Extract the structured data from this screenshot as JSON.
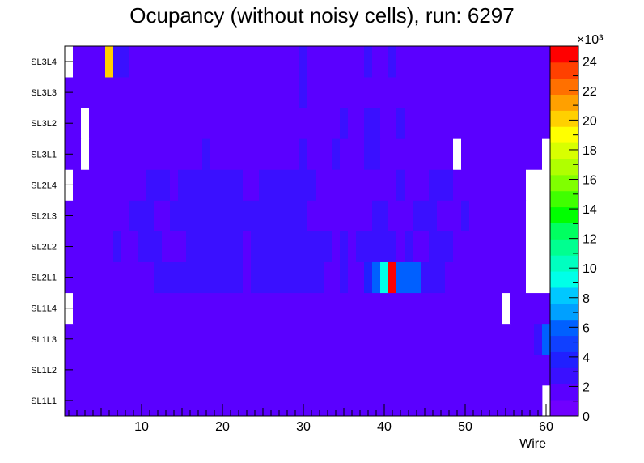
{
  "chart_data": {
    "type": "heatmap",
    "title": "Ocupancy (without noisy cells), run: 6297",
    "xlabel": "Wire",
    "ylabel": "",
    "x_ticks": [
      "10",
      "20",
      "30",
      "40",
      "50",
      "60"
    ],
    "x_range": [
      0.5,
      60.5
    ],
    "layers": [
      "SL1L1",
      "SL1L2",
      "SL1L3",
      "SL1L4",
      "SL2L1",
      "SL2L2",
      "SL2L3",
      "SL2L4",
      "SL3L1",
      "SL3L2",
      "SL3L3",
      "SL3L4"
    ],
    "z_range": [
      0,
      25000
    ],
    "z_multiplier": "×10³",
    "z_ticks": [
      "0",
      "2",
      "4",
      "6",
      "8",
      "10",
      "12",
      "14",
      "16",
      "18",
      "20",
      "22",
      "24"
    ],
    "palette": [
      "#7000ff",
      "#5a00ff",
      "#3a10ff",
      "#2020ff",
      "#1040ff",
      "#0060ff",
      "#00a0ff",
      "#00c8ff",
      "#00ffe8",
      "#00ffc0",
      "#00ff90",
      "#00ff60",
      "#00ff00",
      "#40ff00",
      "#80ff00",
      "#b0ff00",
      "#d8ff00",
      "#ffff00",
      "#ffd000",
      "#ffa000",
      "#ff7000",
      "#ff4000",
      "#ff0000"
    ],
    "white_color": "#ffffff",
    "row_segments": [
      [
        [
          1,
          60,
          1200
        ]
      ],
      [
        [
          1,
          3,
          1200
        ],
        [
          3,
          56,
          2000
        ],
        [
          56,
          61,
          1200
        ]
      ],
      [
        [
          1,
          2,
          1200
        ],
        [
          2,
          56,
          2000
        ],
        [
          56,
          59,
          1200
        ],
        [
          59,
          60,
          2200
        ],
        [
          60,
          61,
          6500
        ]
      ],
      [
        [
          1,
          2,
          0
        ],
        [
          2,
          3,
          1200
        ],
        [
          3,
          55,
          2000
        ],
        [
          55,
          56,
          0
        ],
        [
          56,
          57,
          1200
        ],
        [
          57,
          58,
          2000
        ],
        [
          58,
          61,
          1200
        ]
      ],
      [
        [
          1,
          2,
          1200
        ],
        [
          2,
          12,
          2000
        ],
        [
          12,
          23,
          2600
        ],
        [
          23,
          24,
          2000
        ],
        [
          24,
          33,
          2600
        ],
        [
          33,
          35,
          2000
        ],
        [
          35,
          36,
          2600
        ],
        [
          36,
          38,
          2000
        ],
        [
          38,
          39,
          4000
        ],
        [
          39,
          40,
          6500
        ],
        [
          40,
          41,
          9000
        ],
        [
          41,
          42,
          25000
        ],
        [
          42,
          45,
          6500
        ],
        [
          45,
          48,
          2600
        ],
        [
          48,
          56,
          2000
        ],
        [
          56,
          57,
          1200
        ],
        [
          57,
          58,
          2000
        ],
        [
          58,
          61,
          0
        ]
      ],
      [
        [
          1,
          2,
          1200
        ],
        [
          2,
          7,
          2000
        ],
        [
          7,
          8,
          2600
        ],
        [
          8,
          10,
          2000
        ],
        [
          10,
          13,
          2600
        ],
        [
          13,
          16,
          2000
        ],
        [
          16,
          23,
          2600
        ],
        [
          23,
          24,
          2000
        ],
        [
          24,
          34,
          2600
        ],
        [
          34,
          35,
          2000
        ],
        [
          35,
          36,
          2600
        ],
        [
          36,
          37,
          2000
        ],
        [
          37,
          38,
          2600
        ],
        [
          38,
          42,
          2600
        ],
        [
          42,
          43,
          2000
        ],
        [
          43,
          44,
          2600
        ],
        [
          44,
          46,
          2000
        ],
        [
          46,
          49,
          2600
        ],
        [
          49,
          56,
          2000
        ],
        [
          56,
          57,
          1200
        ],
        [
          57,
          58,
          2000
        ],
        [
          58,
          61,
          0
        ]
      ],
      [
        [
          1,
          2,
          1200
        ],
        [
          2,
          9,
          2000
        ],
        [
          9,
          12,
          2600
        ],
        [
          12,
          14,
          2000
        ],
        [
          14,
          17,
          2600
        ],
        [
          17,
          23,
          2600
        ],
        [
          23,
          31,
          2600
        ],
        [
          31,
          39,
          2000
        ],
        [
          39,
          41,
          2600
        ],
        [
          41,
          44,
          2000
        ],
        [
          44,
          47,
          2600
        ],
        [
          47,
          50,
          2000
        ],
        [
          50,
          51,
          2600
        ],
        [
          51,
          55,
          2000
        ],
        [
          55,
          57,
          1200
        ],
        [
          57,
          58,
          2000
        ],
        [
          58,
          61,
          0
        ]
      ],
      [
        [
          1,
          2,
          0
        ],
        [
          2,
          3,
          1200
        ],
        [
          3,
          11,
          2000
        ],
        [
          11,
          14,
          2600
        ],
        [
          14,
          15,
          2000
        ],
        [
          15,
          23,
          2600
        ],
        [
          23,
          25,
          2000
        ],
        [
          25,
          32,
          2600
        ],
        [
          32,
          42,
          2000
        ],
        [
          42,
          43,
          2600
        ],
        [
          43,
          46,
          2000
        ],
        [
          46,
          49,
          2600
        ],
        [
          49,
          56,
          2000
        ],
        [
          56,
          57,
          1200
        ],
        [
          57,
          58,
          2000
        ],
        [
          58,
          61,
          0
        ]
      ],
      [
        [
          1,
          3,
          2000
        ],
        [
          3,
          4,
          0
        ],
        [
          4,
          18,
          2000
        ],
        [
          18,
          19,
          2600
        ],
        [
          19,
          30,
          2000
        ],
        [
          30,
          31,
          2600
        ],
        [
          31,
          34,
          2000
        ],
        [
          34,
          35,
          2600
        ],
        [
          35,
          38,
          2000
        ],
        [
          38,
          40,
          2600
        ],
        [
          40,
          49,
          2000
        ],
        [
          49,
          50,
          0
        ],
        [
          50,
          60,
          2000
        ],
        [
          60,
          61,
          0
        ]
      ],
      [
        [
          1,
          2,
          2000
        ],
        [
          2,
          3,
          1200
        ],
        [
          3,
          4,
          0
        ],
        [
          4,
          5,
          1200
        ],
        [
          5,
          35,
          2000
        ],
        [
          35,
          36,
          2600
        ],
        [
          36,
          38,
          2000
        ],
        [
          38,
          40,
          2600
        ],
        [
          40,
          42,
          2000
        ],
        [
          42,
          43,
          2600
        ],
        [
          43,
          50,
          2000
        ],
        [
          50,
          51,
          1200
        ],
        [
          51,
          61,
          2000
        ]
      ],
      [
        [
          1,
          3,
          1200
        ],
        [
          3,
          30,
          2000
        ],
        [
          30,
          31,
          2600
        ],
        [
          31,
          45,
          2000
        ],
        [
          45,
          46,
          1200
        ],
        [
          46,
          50,
          2000
        ],
        [
          50,
          51,
          1200
        ],
        [
          51,
          61,
          2000
        ]
      ],
      [
        [
          1,
          2,
          0
        ],
        [
          2,
          3,
          1200
        ],
        [
          3,
          5,
          2000
        ],
        [
          5,
          6,
          1200
        ],
        [
          6,
          7,
          20500
        ],
        [
          7,
          9,
          2600
        ],
        [
          9,
          30,
          2000
        ],
        [
          30,
          31,
          2600
        ],
        [
          31,
          38,
          2000
        ],
        [
          38,
          39,
          2600
        ],
        [
          39,
          41,
          2000
        ],
        [
          41,
          42,
          2600
        ],
        [
          42,
          61,
          2000
        ]
      ]
    ]
  }
}
